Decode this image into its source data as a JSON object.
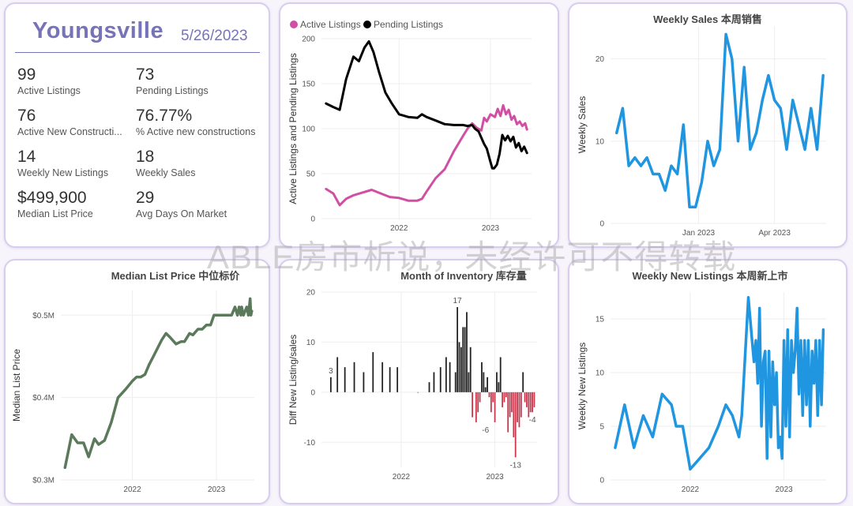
{
  "summary": {
    "city": "Youngsville",
    "date": "5/26/2023",
    "kpis": [
      {
        "value": "99",
        "label": "Active Listings"
      },
      {
        "value": "73",
        "label": "Pending Listings"
      },
      {
        "value": "76",
        "label": "Active New Constructi..."
      },
      {
        "value": "76.77%",
        "label": "% Active new constructions"
      },
      {
        "value": "14",
        "label": "Weekly New Listings"
      },
      {
        "value": "18",
        "label": "Weekly Sales"
      },
      {
        "value": "$499,900",
        "label": "Median List Price"
      },
      {
        "value": "29",
        "label": "Avg Days On Market"
      }
    ]
  },
  "colors": {
    "active": "#d04fa3",
    "pending": "#000000",
    "blue": "#2196e0",
    "green": "#5b7a5b",
    "bar_pos": "#222222",
    "bar_neg": "#c8384d",
    "accent": "#7773b8"
  },
  "watermark": "ABLE房市析说，未经许可不得转载",
  "chart_data": [
    {
      "id": "listings",
      "type": "line",
      "title": "",
      "legend": [
        "Active Listings",
        "Pending Listings"
      ],
      "ylabel": "Active Listings and Pending Listings",
      "xlabel": "",
      "ylim": [
        0,
        200
      ],
      "yticks": [
        0,
        50,
        100,
        150,
        200
      ],
      "xlim": [
        2021.15,
        2023.45
      ],
      "xticks": [
        {
          "v": 2022.0,
          "label": "2022"
        },
        {
          "v": 2023.0,
          "label": "2023"
        }
      ],
      "series": [
        {
          "name": "Active Listings",
          "color": "#d04fa3",
          "x": [
            2021.2,
            2021.28,
            2021.35,
            2021.42,
            2021.5,
            2021.6,
            2021.7,
            2021.8,
            2021.9,
            2022.0,
            2022.1,
            2022.2,
            2022.25,
            2022.3,
            2022.4,
            2022.5,
            2022.6,
            2022.7,
            2022.75,
            2022.8,
            2022.85,
            2022.9,
            2022.93,
            2022.96,
            2023.0,
            2023.05,
            2023.08,
            2023.11,
            2023.14,
            2023.17,
            2023.2,
            2023.23,
            2023.26,
            2023.29,
            2023.32,
            2023.35,
            2023.38,
            2023.4
          ],
          "y": [
            33,
            28,
            15,
            22,
            26,
            29,
            32,
            28,
            24,
            23,
            20,
            20,
            22,
            30,
            45,
            55,
            75,
            92,
            100,
            106,
            101,
            98,
            112,
            108,
            116,
            113,
            122,
            114,
            126,
            116,
            121,
            110,
            114,
            105,
            108,
            103,
            106,
            99
          ]
        },
        {
          "name": "Pending Listings",
          "color": "#000000",
          "x": [
            2021.2,
            2021.28,
            2021.35,
            2021.42,
            2021.5,
            2021.56,
            2021.62,
            2021.67,
            2021.72,
            2021.78,
            2021.85,
            2021.92,
            2022.0,
            2022.1,
            2022.2,
            2022.25,
            2022.3,
            2022.4,
            2022.5,
            2022.6,
            2022.7,
            2022.75,
            2022.8,
            2022.83,
            2022.87,
            2022.9,
            2022.93,
            2022.96,
            2023.0,
            2023.02,
            2023.04,
            2023.07,
            2023.1,
            2023.13,
            2023.16,
            2023.19,
            2023.22,
            2023.25,
            2023.28,
            2023.31,
            2023.34,
            2023.37,
            2023.4
          ],
          "y": [
            128,
            124,
            121,
            155,
            180,
            175,
            190,
            197,
            185,
            163,
            140,
            128,
            116,
            113,
            112,
            116,
            113,
            109,
            105,
            104,
            104,
            103,
            104,
            100,
            97,
            90,
            83,
            78,
            63,
            56,
            56,
            60,
            72,
            93,
            87,
            92,
            86,
            91,
            79,
            84,
            75,
            80,
            73
          ]
        }
      ]
    },
    {
      "id": "weekly_sales",
      "type": "line",
      "title": "Weekly Sales 本周销售",
      "ylabel": "Weekly Sales",
      "xlabel": "",
      "ylim": [
        0,
        24
      ],
      "yticks": [
        0,
        10,
        20
      ],
      "xlim": [
        2022.71,
        2023.42
      ],
      "xticks": [
        {
          "v": 2023.0,
          "label": "Jan 2023"
        },
        {
          "v": 2023.25,
          "label": "Apr 2023"
        }
      ],
      "series": [
        {
          "name": "Weekly Sales",
          "color": "#2196e0",
          "x": [
            2022.73,
            2022.75,
            2022.77,
            2022.79,
            2022.81,
            2022.83,
            2022.85,
            2022.87,
            2022.89,
            2022.91,
            2022.93,
            2022.95,
            2022.97,
            2022.99,
            2023.01,
            2023.03,
            2023.05,
            2023.07,
            2023.09,
            2023.11,
            2023.13,
            2023.15,
            2023.17,
            2023.19,
            2023.21,
            2023.23,
            2023.25,
            2023.27,
            2023.29,
            2023.31,
            2023.33,
            2023.35,
            2023.37,
            2023.39,
            2023.41
          ],
          "y": [
            11,
            14,
            7,
            8,
            7,
            8,
            6,
            6,
            4,
            7,
            6,
            12,
            2,
            2,
            5,
            10,
            7,
            9,
            23,
            20,
            10,
            19,
            9,
            11,
            15,
            18,
            15,
            14,
            9,
            15,
            12,
            9,
            14,
            9,
            18
          ]
        }
      ]
    },
    {
      "id": "median_price",
      "type": "line",
      "title": "Median List Price  中位标价",
      "ylabel": "Median List Price",
      "xlabel": "",
      "ylim": [
        0.3,
        0.53
      ],
      "yticks": [
        {
          "v": 0.3,
          "label": "$0.3M"
        },
        {
          "v": 0.4,
          "label": "$0.4M"
        },
        {
          "v": 0.5,
          "label": "$0.5M"
        }
      ],
      "xlim": [
        2021.15,
        2023.45
      ],
      "xticks": [
        {
          "v": 2022.0,
          "label": "2022"
        },
        {
          "v": 2023.0,
          "label": "2023"
        }
      ],
      "series": [
        {
          "name": "Median List Price",
          "color": "#5b7a5b",
          "x": [
            2021.2,
            2021.28,
            2021.35,
            2021.42,
            2021.48,
            2021.55,
            2021.6,
            2021.67,
            2021.75,
            2021.83,
            2021.92,
            2022.0,
            2022.05,
            2022.1,
            2022.15,
            2022.2,
            2022.25,
            2022.3,
            2022.35,
            2022.4,
            2022.45,
            2022.52,
            2022.58,
            2022.62,
            2022.68,
            2022.72,
            2022.78,
            2022.83,
            2022.88,
            2022.93,
            2022.97,
            2023.0,
            2023.03,
            2023.06,
            2023.1,
            2023.14,
            2023.18,
            2023.22,
            2023.25,
            2023.27,
            2023.29,
            2023.3,
            2023.32,
            2023.34,
            2023.36,
            2023.38,
            2023.4,
            2023.41,
            2023.42
          ],
          "y": [
            0.315,
            0.355,
            0.345,
            0.345,
            0.328,
            0.35,
            0.343,
            0.348,
            0.37,
            0.4,
            0.41,
            0.42,
            0.425,
            0.425,
            0.428,
            0.44,
            0.45,
            0.46,
            0.47,
            0.478,
            0.473,
            0.465,
            0.468,
            0.468,
            0.478,
            0.476,
            0.483,
            0.483,
            0.488,
            0.488,
            0.5,
            0.5,
            0.5,
            0.5,
            0.5,
            0.5,
            0.5,
            0.51,
            0.5,
            0.51,
            0.5,
            0.51,
            0.5,
            0.505,
            0.51,
            0.5,
            0.52,
            0.5,
            0.505
          ]
        }
      ]
    },
    {
      "id": "inventory",
      "type": "bar",
      "title": "Month of Inventory 库存量",
      "ylabel": "Diff New Listing/sales",
      "xlabel": "",
      "ylim": [
        -15,
        20
      ],
      "yticks": [
        -10,
        0,
        10,
        20
      ],
      "xlim": [
        2021.15,
        2023.45
      ],
      "xticks": [
        {
          "v": 2022.0,
          "label": "2022"
        },
        {
          "v": 2023.0,
          "label": "2023"
        }
      ],
      "data_labels": [
        {
          "x": 2021.25,
          "y": 3,
          "label": "3"
        },
        {
          "x": 2022.6,
          "y": 17,
          "label": "17"
        },
        {
          "x": 2022.9,
          "y": -6,
          "label": "-6"
        },
        {
          "x": 2023.22,
          "y": -13,
          "label": "-13"
        },
        {
          "x": 2023.4,
          "y": -4,
          "label": "-4"
        }
      ],
      "x": [
        2021.25,
        2021.32,
        2021.4,
        2021.5,
        2021.6,
        2021.7,
        2021.8,
        2021.88,
        2021.96,
        2022.18,
        2022.3,
        2022.35,
        2022.42,
        2022.48,
        2022.52,
        2022.58,
        2022.6,
        2022.62,
        2022.64,
        2022.66,
        2022.68,
        2022.7,
        2022.72,
        2022.74,
        2022.76,
        2022.8,
        2022.82,
        2022.84,
        2022.86,
        2022.88,
        2022.9,
        2022.92,
        2022.94,
        2022.96,
        2022.98,
        2023.0,
        2023.02,
        2023.04,
        2023.06,
        2023.08,
        2023.1,
        2023.12,
        2023.14,
        2023.16,
        2023.18,
        2023.2,
        2023.22,
        2023.24,
        2023.26,
        2023.28,
        2023.3,
        2023.32,
        2023.34,
        2023.36,
        2023.38,
        2023.4,
        2023.42
      ],
      "values": [
        3,
        7,
        5,
        6,
        4,
        8,
        6,
        5,
        5,
        0,
        2,
        4,
        5,
        7,
        6,
        4,
        17,
        10,
        9,
        13,
        13,
        16,
        4,
        9,
        -5,
        -6,
        -4,
        -2,
        6,
        4,
        1,
        3,
        -1,
        -4,
        -2,
        -6,
        4,
        2,
        7,
        -3,
        -2,
        -1,
        -8,
        -5,
        -4,
        -9,
        -13,
        -6,
        -7,
        -5,
        4,
        -2,
        -3,
        -5,
        -4,
        -4,
        -3
      ]
    },
    {
      "id": "new_listings",
      "type": "line",
      "title": "Weekly New Listings  本周新上市",
      "ylabel": "Weekly New Listings",
      "xlabel": "",
      "ylim": [
        0,
        17.5
      ],
      "yticks": [
        0,
        5,
        10,
        15
      ],
      "xlim": [
        2021.15,
        2023.45
      ],
      "xticks": [
        {
          "v": 2022.0,
          "label": "2022"
        },
        {
          "v": 2023.0,
          "label": "2023"
        }
      ],
      "series": [
        {
          "name": "Weekly New Listings",
          "color": "#2196e0",
          "x": [
            2021.2,
            2021.3,
            2021.4,
            2021.5,
            2021.6,
            2021.7,
            2021.8,
            2021.85,
            2021.92,
            2022.0,
            2022.1,
            2022.2,
            2022.3,
            2022.38,
            2022.45,
            2022.52,
            2022.55,
            2022.62,
            2022.66,
            2022.68,
            2022.7,
            2022.72,
            2022.74,
            2022.76,
            2022.78,
            2022.8,
            2022.82,
            2022.84,
            2022.86,
            2022.88,
            2022.9,
            2022.92,
            2022.94,
            2022.96,
            2022.98,
            2023.0,
            2023.02,
            2023.04,
            2023.06,
            2023.08,
            2023.1,
            2023.12,
            2023.14,
            2023.16,
            2023.18,
            2023.2,
            2023.22,
            2023.24,
            2023.26,
            2023.28,
            2023.3,
            2023.32,
            2023.34,
            2023.36,
            2023.38,
            2023.4,
            2023.42
          ],
          "y": [
            3,
            7,
            3,
            6,
            4,
            8,
            7,
            5,
            5,
            1,
            2,
            3,
            5,
            7,
            6,
            4,
            6,
            17,
            13,
            11,
            13,
            9,
            16,
            5,
            11,
            12,
            2,
            12,
            4,
            11,
            7,
            10,
            3,
            4,
            2,
            13,
            5,
            14,
            4,
            13,
            10,
            12,
            16,
            8,
            13,
            6,
            13,
            7,
            13,
            5,
            12,
            9,
            13,
            6,
            13,
            7,
            14
          ]
        }
      ]
    }
  ]
}
